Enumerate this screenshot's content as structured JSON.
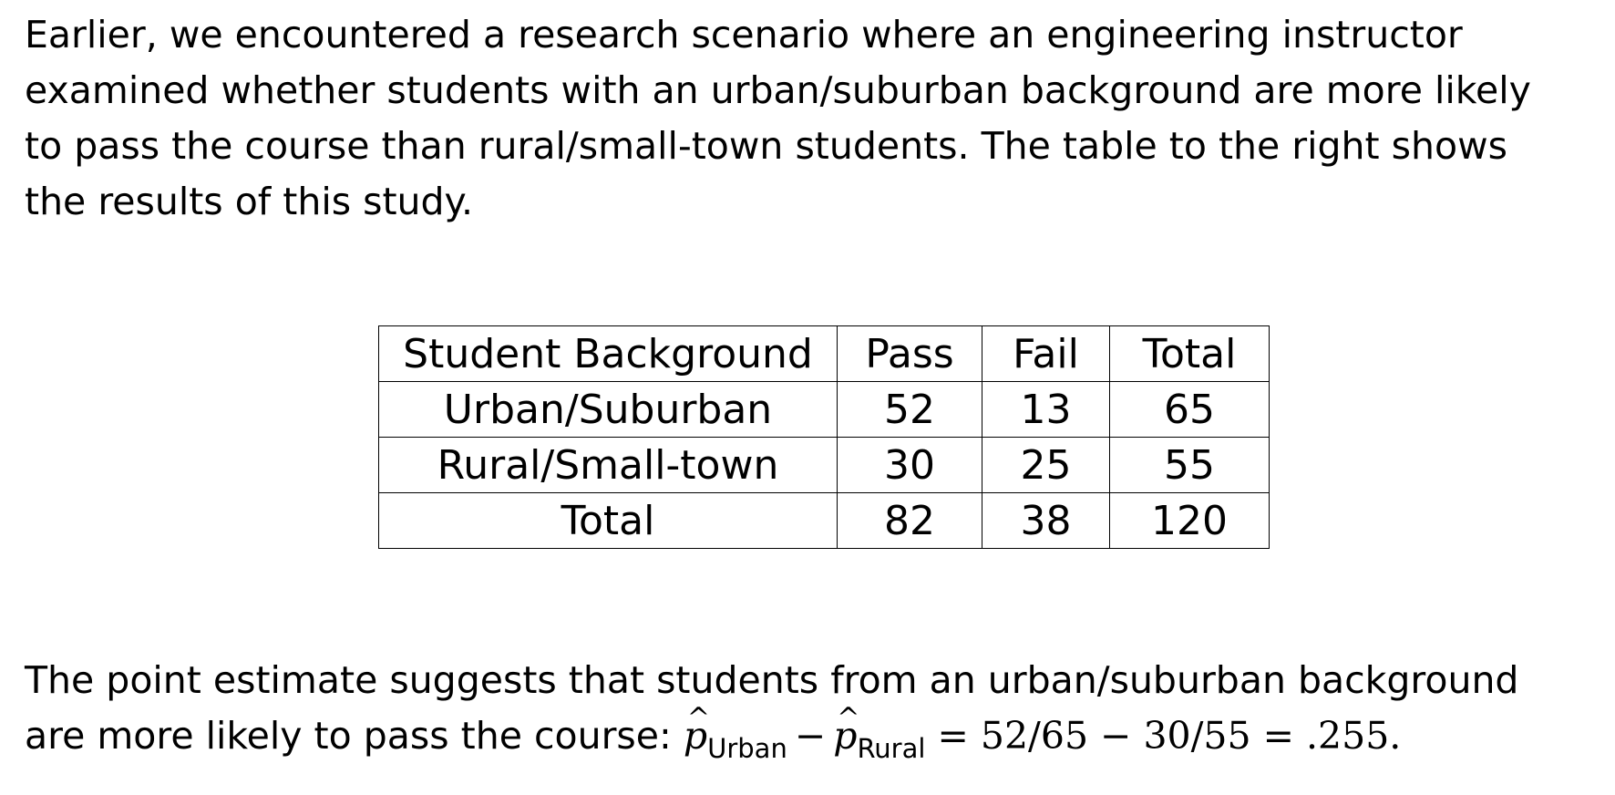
{
  "intro": {
    "lines": [
      "Earlier, we encountered a research scenario where an engineering instructor",
      "examined whether students with an urban/suburban background are more likely",
      "to pass the course than rural/small-town students.  The table to the right shows",
      "the results of this study."
    ]
  },
  "table": {
    "headers": [
      "Student Background",
      "Pass",
      "Fail",
      "Total"
    ],
    "rows": [
      [
        "Urban/Suburban",
        "52",
        "13",
        "65"
      ],
      [
        "Rural/Small-town",
        "30",
        "25",
        "55"
      ],
      [
        "Total",
        "82",
        "38",
        "120"
      ]
    ]
  },
  "conclusion": {
    "line1": "The point estimate suggests that students from an urban/suburban background",
    "line2_text": "are more likely to pass the course: ",
    "formula": {
      "p_symbol": "p",
      "hat_symbol": "^",
      "sub1": "Urban",
      "minus": "−",
      "sub2": "Rural",
      "rhs": "= 52/65 − 30/55 = .255."
    }
  }
}
